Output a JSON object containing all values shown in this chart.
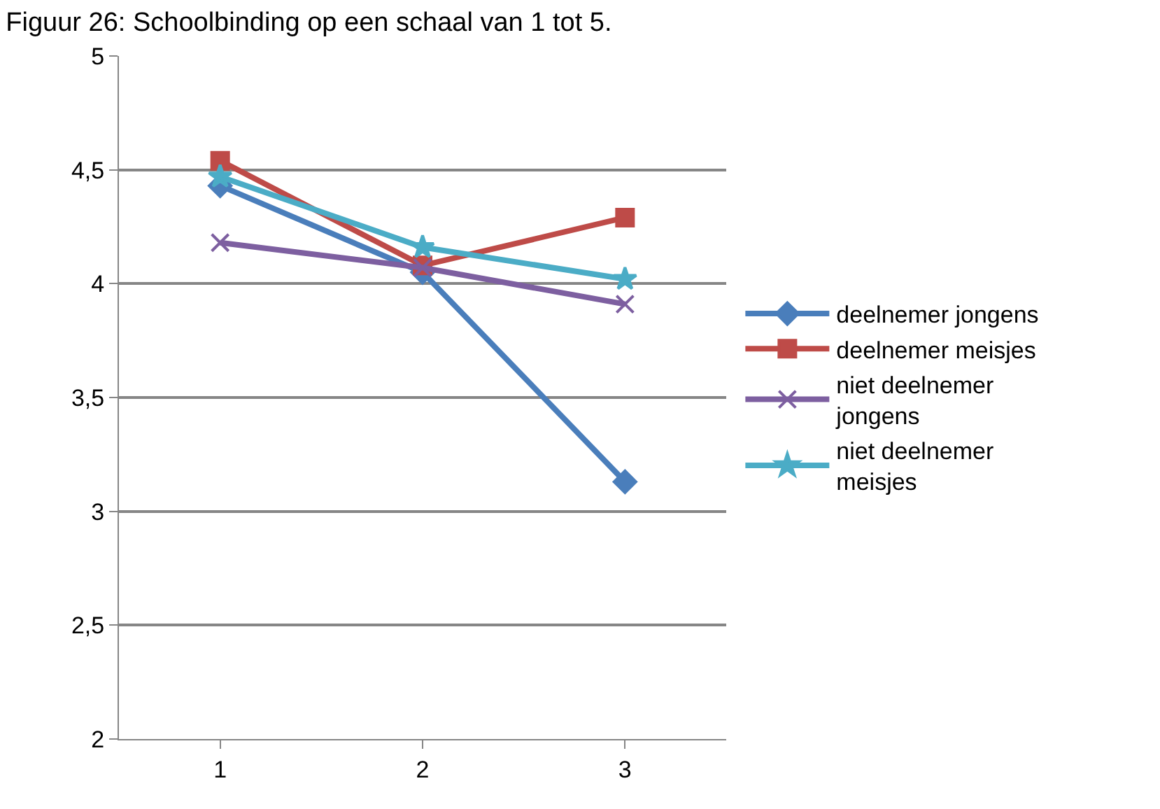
{
  "chart_data": {
    "type": "line",
    "title": "Figuur 26: Schoolbinding op een schaal van 1 tot 5.",
    "categories": [
      "1",
      "2",
      "3"
    ],
    "series": [
      {
        "name": "deelnemer jongens",
        "color": "#4a7ebb",
        "marker": "diamond",
        "values": [
          4.43,
          4.05,
          3.13
        ]
      },
      {
        "name": "deelnemer meisjes",
        "color": "#be4b48",
        "marker": "square",
        "values": [
          4.54,
          4.08,
          4.29
        ]
      },
      {
        "name": "niet deelnemer jongens",
        "color": "#7d5fa0",
        "marker": "cross",
        "values": [
          4.18,
          4.07,
          3.91
        ]
      },
      {
        "name": "niet deelnemer meisjes",
        "color": "#4bacc6",
        "marker": "star",
        "values": [
          4.47,
          4.16,
          4.02
        ]
      }
    ],
    "ylim": [
      2,
      5
    ],
    "yticks": [
      {
        "value": 2,
        "label": "2"
      },
      {
        "value": 2.5,
        "label": "2,5"
      },
      {
        "value": 3,
        "label": "3"
      },
      {
        "value": 3.5,
        "label": "3,5"
      },
      {
        "value": 4,
        "label": "4"
      },
      {
        "value": 4.5,
        "label": "4,5"
      },
      {
        "value": 5,
        "label": "5"
      }
    ],
    "grid": "y",
    "legend": "right",
    "line_style": "solid"
  }
}
